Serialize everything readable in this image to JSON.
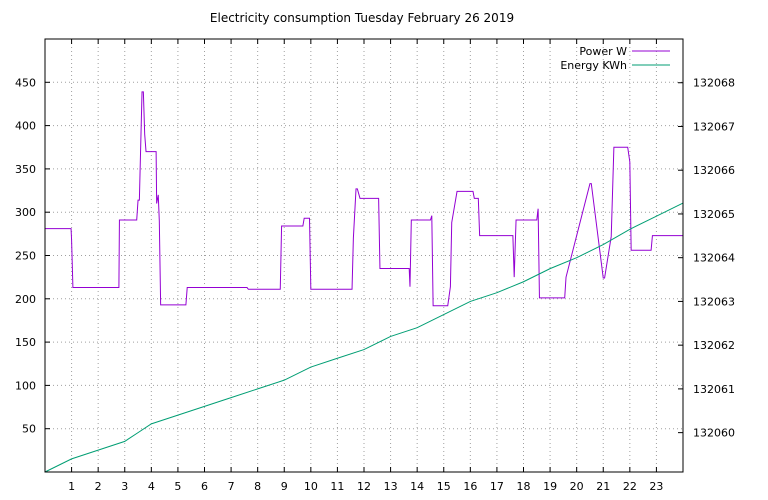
{
  "chart_data": {
    "type": "line",
    "title": "Electricity consumption Tuesday February 26 2019",
    "xlabel": "",
    "ylabel": "",
    "y2label": "",
    "grid": true,
    "legend_position": "top-right",
    "xlim": [
      0,
      24
    ],
    "ylim": [
      0,
      500
    ],
    "y2lim": [
      132059.1,
      132069.0
    ],
    "x_ticks": [
      1,
      2,
      3,
      4,
      5,
      6,
      7,
      8,
      9,
      10,
      11,
      12,
      13,
      14,
      15,
      16,
      17,
      18,
      19,
      20,
      21,
      22,
      23
    ],
    "y_ticks": [
      50,
      100,
      150,
      200,
      250,
      300,
      350,
      400,
      450
    ],
    "y2_ticks": [
      132060,
      132061,
      132062,
      132063,
      132064,
      132065,
      132066,
      132067,
      132068
    ],
    "series": [
      {
        "name": "Power W",
        "axis": "y",
        "color": "#9400d3",
        "x": [
          0,
          0.98,
          1.0,
          1.05,
          2.78,
          2.8,
          3.45,
          3.5,
          3.55,
          3.65,
          3.7,
          3.75,
          3.8,
          4.18,
          4.2,
          4.26,
          4.3,
          4.35,
          5.3,
          5.35,
          7.6,
          7.65,
          8.85,
          8.9,
          9.7,
          9.75,
          9.95,
          10.0,
          11.55,
          11.6,
          11.7,
          11.75,
          11.85,
          12.55,
          12.6,
          13.7,
          13.73,
          13.78,
          14.5,
          14.55,
          14.6,
          15.15,
          15.25,
          15.3,
          15.5,
          16.1,
          16.15,
          16.3,
          16.35,
          17.6,
          17.65,
          17.72,
          18.5,
          18.55,
          18.6,
          19.55,
          19.6,
          20.5,
          20.55,
          21.0,
          21.05,
          21.3,
          21.4,
          21.92,
          22.0,
          22.05,
          22.8,
          22.85,
          24.0
        ],
        "values": [
          281,
          281,
          268,
          213,
          213,
          291,
          291,
          314,
          314,
          439,
          439,
          390,
          370,
          370,
          310,
          320,
          290,
          193,
          193,
          213,
          213,
          211,
          211,
          284,
          284,
          293,
          293,
          211,
          211,
          270,
          327,
          327,
          316,
          316,
          235,
          235,
          214,
          291,
          291,
          296,
          192,
          192,
          214,
          288,
          324,
          324,
          316,
          316,
          273,
          273,
          225,
          291,
          291,
          304,
          201,
          201,
          225,
          333,
          333,
          224,
          224,
          272,
          375,
          375,
          358,
          256,
          256,
          273,
          273
        ]
      },
      {
        "name": "Energy KWh",
        "axis": "y2",
        "color": "#009e73",
        "x": [
          0,
          1,
          2,
          3,
          3.5,
          4,
          5,
          6,
          7,
          8,
          9,
          10,
          11,
          12,
          13,
          14,
          15,
          16,
          17,
          18,
          19,
          20,
          21,
          22,
          23,
          24
        ],
        "values": [
          132059.1,
          132059.4,
          132059.6,
          132059.8,
          132060.0,
          132060.2,
          132060.4,
          132060.6,
          132060.8,
          132061.0,
          132061.2,
          132061.5,
          132061.7,
          132061.9,
          132062.2,
          132062.4,
          132062.7,
          132063.0,
          132063.2,
          132063.45,
          132063.75,
          132064.0,
          132064.3,
          132064.65,
          132064.95,
          132065.25
        ]
      }
    ]
  }
}
